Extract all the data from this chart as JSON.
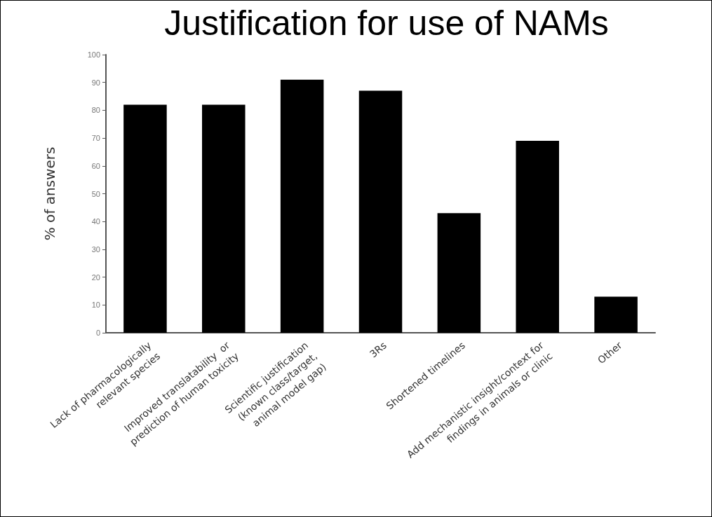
{
  "chart_data": {
    "type": "bar",
    "title": "Justification for use of NAMs",
    "ylabel": "% of answers",
    "categories": [
      "Lack of pharmacologically\nrelevant species",
      "Improved translatability  or\nprediction of human toxicity",
      "Scientific justification\n(known class/target,\nanimal model gap)",
      "3Rs",
      "Shortened timelines",
      "Add mechanistic insight/context for\nfindings in animals or clinic",
      "Other"
    ],
    "values": [
      82,
      82,
      91,
      87,
      43,
      69,
      13
    ],
    "color": "#000000",
    "ylim": [
      0,
      100
    ],
    "yticks": [
      0,
      10,
      20,
      30,
      40,
      50,
      60,
      70,
      80,
      90,
      100
    ],
    "grid": false
  }
}
